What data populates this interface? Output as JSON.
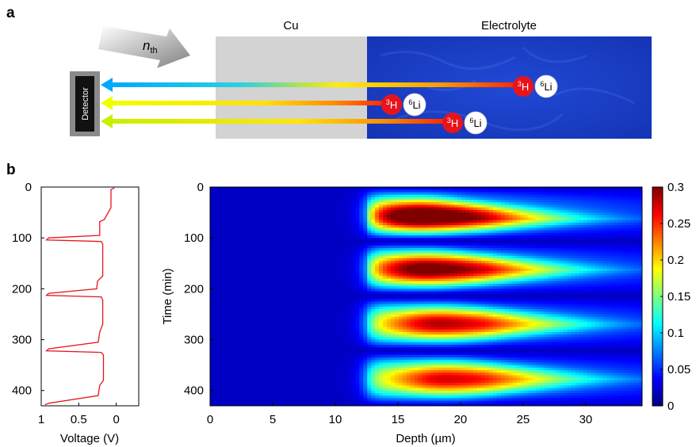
{
  "panel_labels": {
    "a": "a",
    "b": "b"
  },
  "schematic": {
    "neutron_label": "n",
    "neutron_sub": "th",
    "cu_label": "Cu",
    "electrolyte_label": "Electrolyte",
    "detector_label": "Detector",
    "tracks": [
      {
        "h_label": "H",
        "h_mass": "3",
        "li_label": "Li",
        "li_mass": "6"
      },
      {
        "h_label": "H",
        "h_mass": "3",
        "li_label": "Li",
        "li_mass": "6"
      },
      {
        "h_label": "H",
        "h_mass": "3",
        "li_label": "Li",
        "li_mass": "6"
      }
    ],
    "colors": {
      "cu": "#d3d3d3",
      "electrolyte": "#1a3fc4",
      "triton": "#e8141b",
      "lithium": "#ffffff",
      "detector": "#8a8a8a"
    }
  },
  "chart_data": [
    {
      "type": "line",
      "xlabel": "Voltage (V)",
      "ylabel": "",
      "xlim": [
        1,
        -0.3
      ],
      "ylim": [
        430,
        0
      ],
      "xticks": [
        1,
        0.5,
        0
      ],
      "yticks": [
        0,
        100,
        200,
        300,
        400
      ],
      "series": [
        {
          "color": "#e8141b",
          "points": [
            [
              0.02,
              0
            ],
            [
              0.03,
              2
            ],
            [
              0.07,
              5
            ],
            [
              0.07,
              40
            ],
            [
              0.16,
              64
            ],
            [
              0.22,
              68
            ],
            [
              0.22,
              95
            ],
            [
              0.9,
              100
            ],
            [
              0.93,
              104
            ],
            [
              0.2,
              107
            ],
            [
              0.18,
              112
            ],
            [
              0.18,
              175
            ],
            [
              0.25,
              185
            ],
            [
              0.26,
              200
            ],
            [
              0.9,
              209
            ],
            [
              0.93,
              213
            ],
            [
              0.2,
              216
            ],
            [
              0.18,
              222
            ],
            [
              0.18,
              270
            ],
            [
              0.22,
              285
            ],
            [
              0.24,
              305
            ],
            [
              0.9,
              318
            ],
            [
              0.93,
              322
            ],
            [
              0.2,
              325
            ],
            [
              0.17,
              330
            ],
            [
              0.17,
              380
            ],
            [
              0.22,
              390
            ],
            [
              0.24,
              410
            ],
            [
              0.9,
              425
            ],
            [
              0.95,
              428
            ]
          ]
        }
      ]
    },
    {
      "type": "heatmap",
      "xlabel": "Depth (µm)",
      "ylabel": "Time (min)",
      "xlim": [
        0,
        34.5
      ],
      "ylim": [
        430,
        0
      ],
      "xticks": [
        0,
        5,
        10,
        15,
        20,
        25,
        30
      ],
      "yticks": [
        0,
        100,
        200,
        300,
        400
      ],
      "colorbar": {
        "min": 0,
        "max": 0.3,
        "ticks": [
          0,
          0.05,
          0.1,
          0.15,
          0.2,
          0.25,
          0.3
        ]
      },
      "colormap": "jet",
      "front_depth": 12.5,
      "background": 0.02,
      "tail_level": 0.08,
      "cycles": [
        {
          "start": 0,
          "end": 105,
          "peak_time": 63,
          "peak_depth": 17,
          "peak": 0.3
        },
        {
          "start": 108,
          "end": 212,
          "peak_time": 163,
          "peak_depth": 17.5,
          "peak": 0.265
        },
        {
          "start": 216,
          "end": 320,
          "peak_time": 270,
          "peak_depth": 18.5,
          "peak": 0.235
        },
        {
          "start": 324,
          "end": 430,
          "peak_time": 378,
          "peak_depth": 19,
          "peak": 0.225
        }
      ]
    }
  ]
}
